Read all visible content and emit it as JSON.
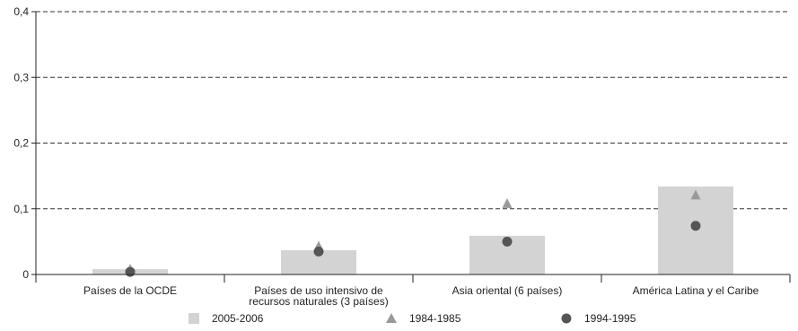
{
  "chart_data": {
    "type": "bar",
    "categories": [
      [
        "Países de la OCDE"
      ],
      [
        "Países de uso intensivo de",
        "recursos naturales (3 países)"
      ],
      [
        "Asia oriental (6 países)"
      ],
      [
        "América Latina y el Caribe"
      ]
    ],
    "series": [
      {
        "name": "2005-2006",
        "kind": "bar",
        "marker": "square",
        "values": [
          0.008,
          0.037,
          0.059,
          0.134
        ]
      },
      {
        "name": "1984-1985",
        "kind": "marker",
        "marker": "triangle",
        "values": [
          0.008,
          0.043,
          0.108,
          0.121
        ]
      },
      {
        "name": "1994-1995",
        "kind": "marker",
        "marker": "circle",
        "values": [
          0.004,
          0.035,
          0.05,
          0.074
        ]
      }
    ],
    "y_ticks": [
      "0",
      "0,1",
      "0,2",
      "0,3",
      "0,4"
    ],
    "ylim": [
      0,
      0.4
    ],
    "grid": "horizontal dashed",
    "legend_position": "bottom",
    "colors": {
      "bar": "#d3d3d3",
      "triangle": "#9a9a9a",
      "circle": "#555555",
      "axis": "#222222",
      "grid": "#333333"
    }
  }
}
